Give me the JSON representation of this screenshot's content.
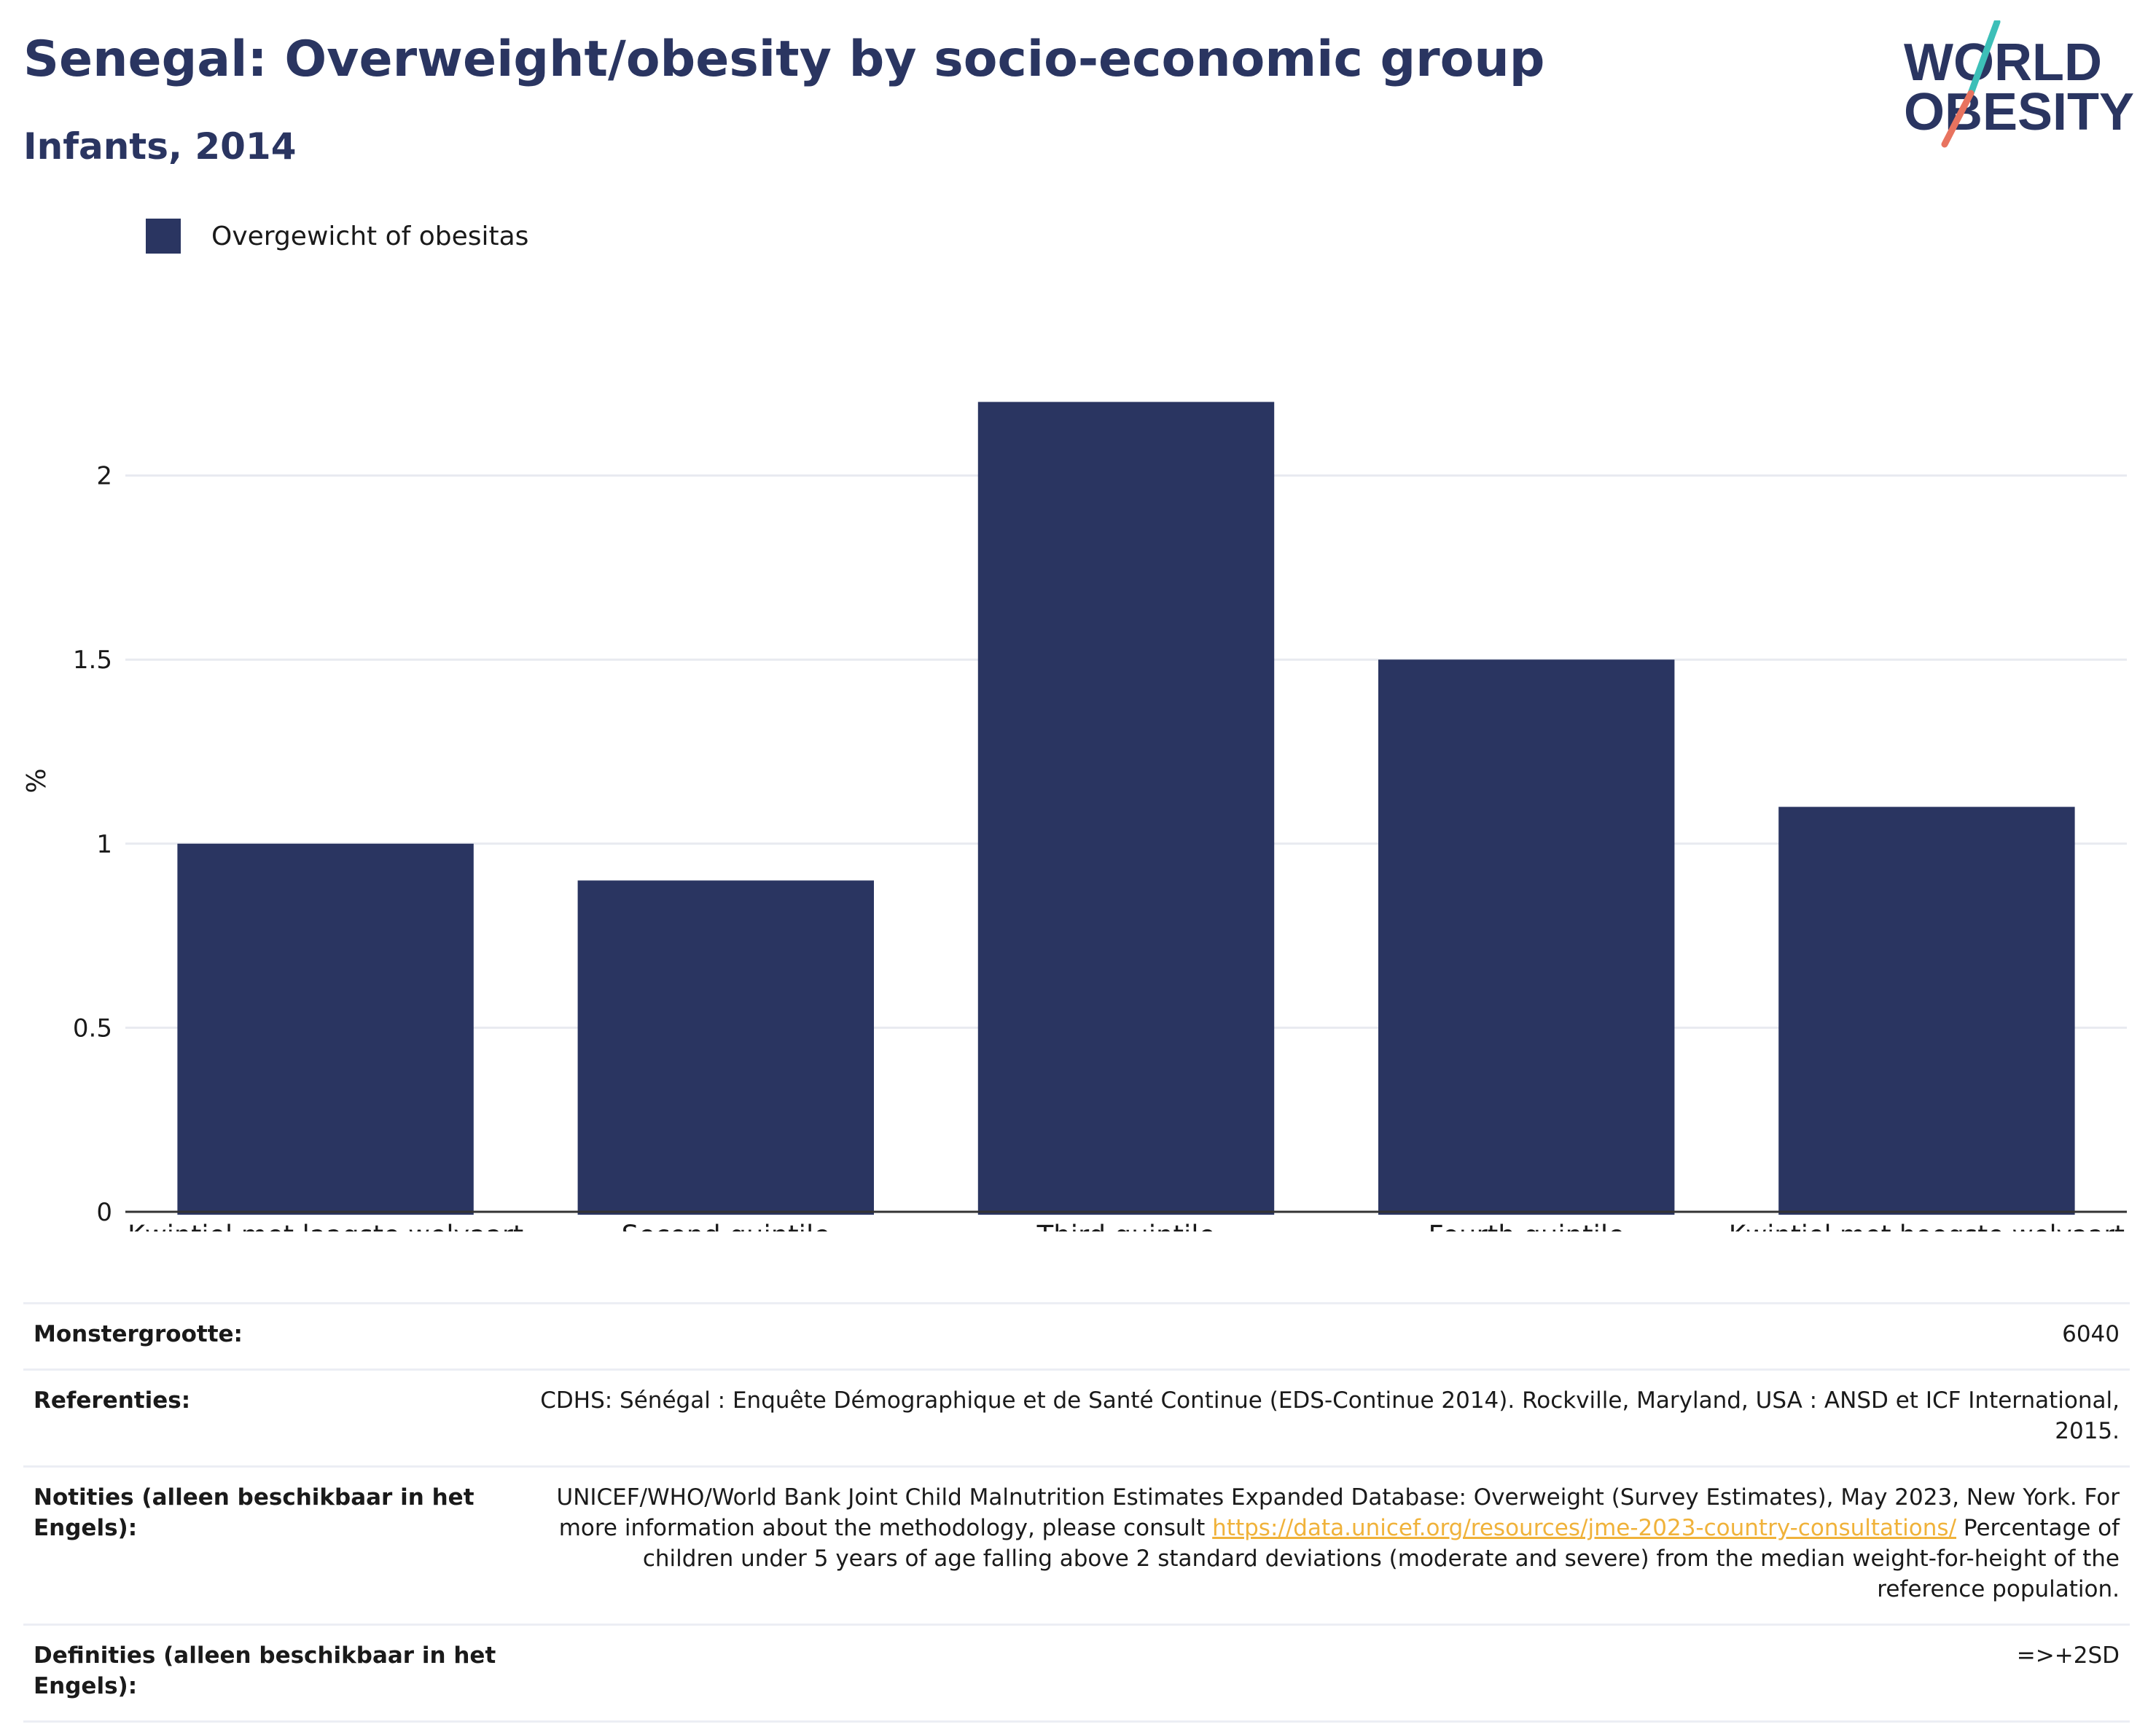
{
  "header": {
    "title": "Senegal: Overweight/obesity by socio-economic group",
    "subtitle": "Infants, 2014"
  },
  "logo": {
    "line1": "WORLD",
    "line2": "OBESITY"
  },
  "colors": {
    "bar": "#2a3561",
    "title": "#2a3561",
    "grid": "#e8eaf0",
    "link": "#f0b23a",
    "logo_teal": "#3dbfb8",
    "logo_coral": "#e8735f"
  },
  "legend": {
    "label": "Overgewicht of obesitas",
    "placement": "top-left"
  },
  "chart_data": {
    "type": "bar",
    "categories": [
      "Kwintiel met laagste welvaart",
      "Second quintile",
      "Third quintile",
      "Fourth quintile",
      "Kwintiel met hoogste welvaart"
    ],
    "series": [
      {
        "name": "Overgewicht of obesitas",
        "values": [
          1.0,
          0.9,
          2.2,
          1.5,
          1.1
        ]
      }
    ],
    "ylabel": "%",
    "xlabel": "",
    "ylim": [
      0,
      2.5
    ],
    "yticks": [
      0,
      0.5,
      1,
      1.5,
      2
    ],
    "ytick_labels": [
      "0",
      "0.5",
      "1",
      "1.5",
      "2"
    ],
    "grid": true
  },
  "meta": {
    "sample_size": {
      "label": "Monstergrootte:",
      "value": "6040"
    },
    "references": {
      "label": "Referenties:",
      "value": "CDHS: Sénégal : Enquête Démographique et de Santé Continue (EDS-Continue 2014). Rockville, Maryland, USA : ANSD et ICF International, 2015."
    },
    "notes": {
      "label": "Notities (alleen beschikbaar in het Engels):",
      "value_pre": "UNICEF/WHO/World Bank Joint Child Malnutrition Estimates Expanded Database: Overweight (Survey Estimates), May 2023, New York. For more information about the methodology, please consult",
      "link": "https://data.unicef.org/resources/jme-2023-country-consultations/",
      "value_post": "Percentage of children under 5 years of age falling above 2 standard deviations (moderate and severe) from the median weight-for-height of the reference population."
    },
    "definitions": {
      "label": "Definities (alleen beschikbaar in het Engels):",
      "value": "=>+2SD"
    }
  }
}
